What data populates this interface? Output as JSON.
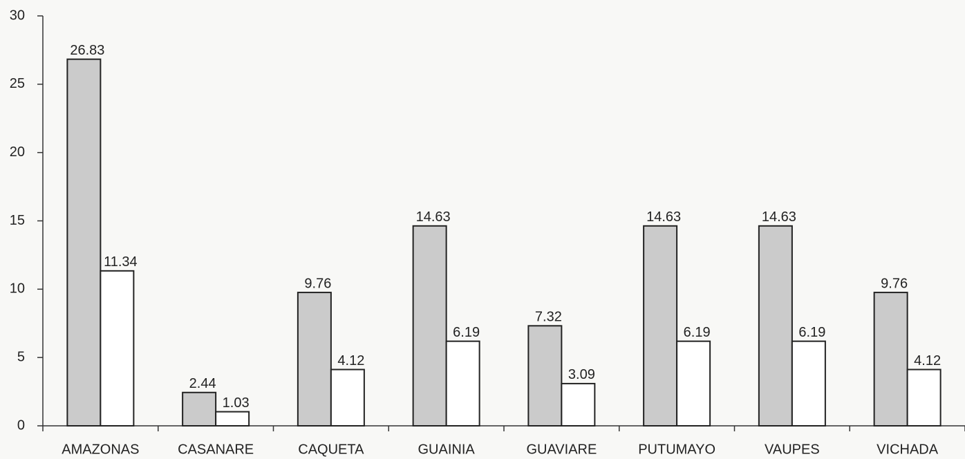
{
  "chart_data": {
    "type": "bar",
    "categories": [
      "AMAZONAS",
      "CASANARE",
      "CAQUETA",
      "GUAINIA",
      "GUAVIARE",
      "PUTUMAYO",
      "VAUPES",
      "VICHADA"
    ],
    "series": [
      {
        "color": "#cbcbcb",
        "values": [
          26.83,
          2.44,
          9.76,
          14.63,
          7.32,
          14.63,
          14.63,
          9.76
        ]
      },
      {
        "color": "#ffffff",
        "values": [
          11.34,
          1.03,
          4.12,
          6.19,
          3.09,
          6.19,
          6.19,
          4.12
        ]
      }
    ],
    "ylim": [
      0,
      30
    ],
    "yticks": [
      0,
      5,
      10,
      15,
      20,
      25,
      30
    ],
    "grid": false
  }
}
